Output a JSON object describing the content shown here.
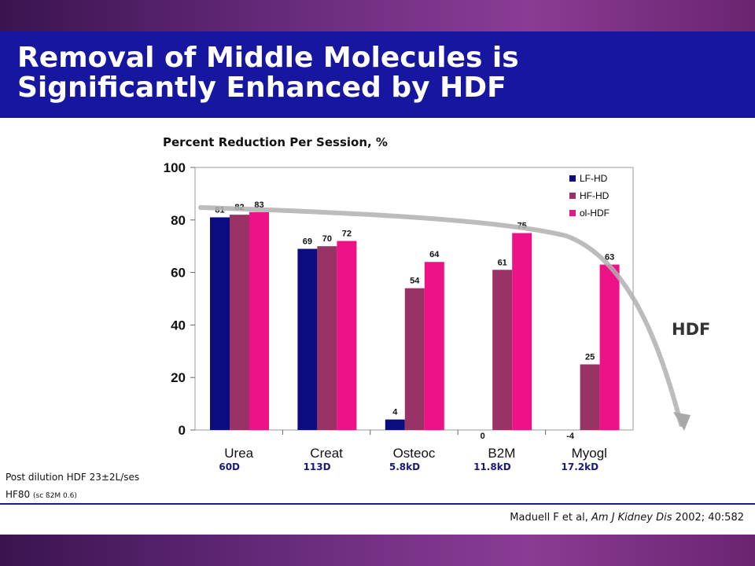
{
  "slide": {
    "title_line1": "Removal of Middle Molecules is",
    "title_line2": "Significantly Enhanced by HDF",
    "hdf_label": "HDF",
    "note_line1": "Post dilution HDF 23±2L/ses",
    "note_line2_main": "HF80",
    "note_line2_small": "(sc ß2M 0.6)",
    "citation_prefix": "Maduell F et al,",
    "citation_journal": "Am J Kidney Dis",
    "citation_suffix": "2002; 40:582",
    "colors": {
      "title_bar": "#1616a0",
      "band": "#6a2c7e"
    }
  },
  "chart_data": {
    "type": "bar",
    "title": "Percent Reduction Per Session, %",
    "categories": [
      "Urea",
      "Creat",
      "Osteoc",
      "B2M",
      "Myogl"
    ],
    "sublabels": [
      "60D",
      "113D",
      "5.8kD",
      "11.8kD",
      "17.2kD"
    ],
    "series": [
      {
        "name": "LF-HD",
        "color": "#0c0c80",
        "values": [
          81,
          69,
          4,
          0,
          -4
        ]
      },
      {
        "name": "HF-HD",
        "color": "#993366",
        "values": [
          82,
          70,
          54,
          61,
          25
        ]
      },
      {
        "name": "ol-HDF",
        "color": "#ee1188",
        "values": [
          83,
          72,
          64,
          75,
          63
        ]
      }
    ],
    "yticks": [
      0,
      20,
      40,
      60,
      80,
      100
    ],
    "ylim": [
      0,
      100
    ],
    "legend_position": "top-right",
    "grid": false
  }
}
